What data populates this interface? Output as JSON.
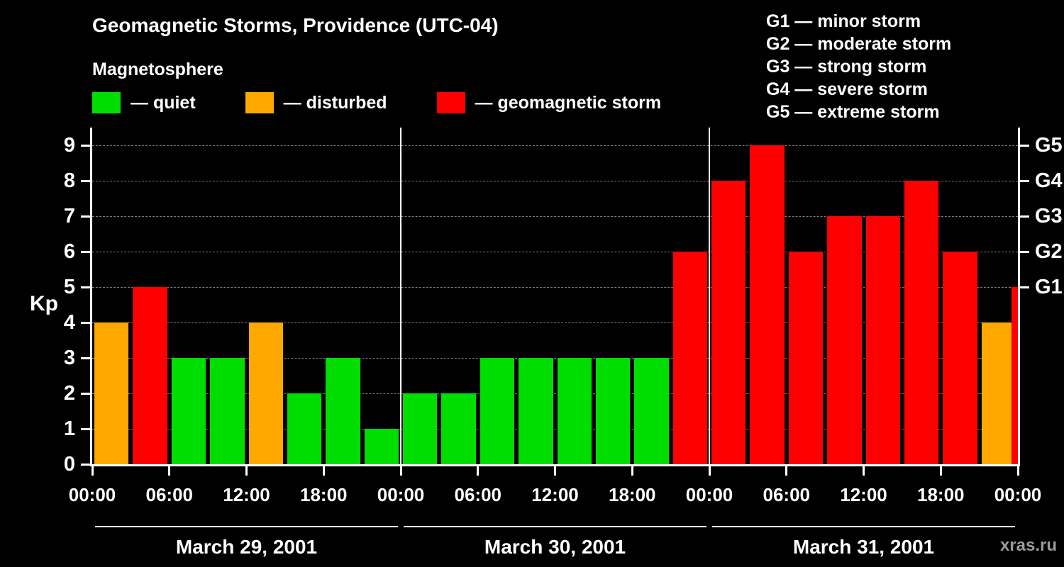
{
  "title": "Geomagnetic Storms, Providence (UTC-04)",
  "legend": {
    "heading": "Magnetosphere",
    "items": [
      {
        "name": "quiet",
        "label": "— quiet",
        "color": "#00dd00"
      },
      {
        "name": "disturbed",
        "label": "— disturbed",
        "color": "#ffa800"
      },
      {
        "name": "geomagnetic-storm",
        "label": "— geomagnetic storm",
        "color": "#ff0000"
      }
    ]
  },
  "storm_scale": [
    {
      "code": "G1",
      "label": "— minor storm"
    },
    {
      "code": "G2",
      "label": "— moderate storm"
    },
    {
      "code": "G3",
      "label": "— strong storm"
    },
    {
      "code": "G4",
      "label": "— severe storm"
    },
    {
      "code": "G5",
      "label": "— extreme storm"
    }
  ],
  "axis": {
    "y_label": "Kp",
    "y_ticks": [
      0,
      1,
      2,
      3,
      4,
      5,
      6,
      7,
      8,
      9
    ],
    "right_ticks": [
      {
        "kp": 5,
        "label": "G1"
      },
      {
        "kp": 6,
        "label": "G2"
      },
      {
        "kp": 7,
        "label": "G3"
      },
      {
        "kp": 8,
        "label": "G4"
      },
      {
        "kp": 9,
        "label": "G5"
      }
    ],
    "x_tick_labels": [
      "00:00",
      "06:00",
      "12:00",
      "18:00",
      "00:00",
      "06:00",
      "12:00",
      "18:00",
      "00:00",
      "06:00",
      "12:00",
      "18:00",
      "00:00"
    ]
  },
  "watermark": "xras.ru",
  "chart_data": {
    "type": "bar",
    "title": "Geomagnetic Storms, Providence (UTC-04)",
    "ylabel": "Kp",
    "ylim": [
      0,
      9.5
    ],
    "bar_interval_hours": 3,
    "grid": "horizontal-dashed",
    "legend_position": "top-left",
    "color_rule": {
      "quiet": "Kp 0-3",
      "disturbed": "Kp 4",
      "storm": "Kp 5-9"
    },
    "colors": {
      "quiet": "#00dd00",
      "disturbed": "#ffa800",
      "storm": "#ff0000"
    },
    "days": [
      {
        "date": "March 29, 2001",
        "kp": [
          4,
          5,
          3,
          3,
          4,
          2,
          3,
          1
        ]
      },
      {
        "date": "March 30, 2001",
        "kp": [
          2,
          2,
          3,
          3,
          3,
          3,
          3,
          6
        ]
      },
      {
        "date": "March 31, 2001",
        "kp": [
          8,
          9,
          6,
          7,
          7,
          8,
          6,
          4
        ]
      }
    ],
    "next_day_partial_kp": 5
  }
}
